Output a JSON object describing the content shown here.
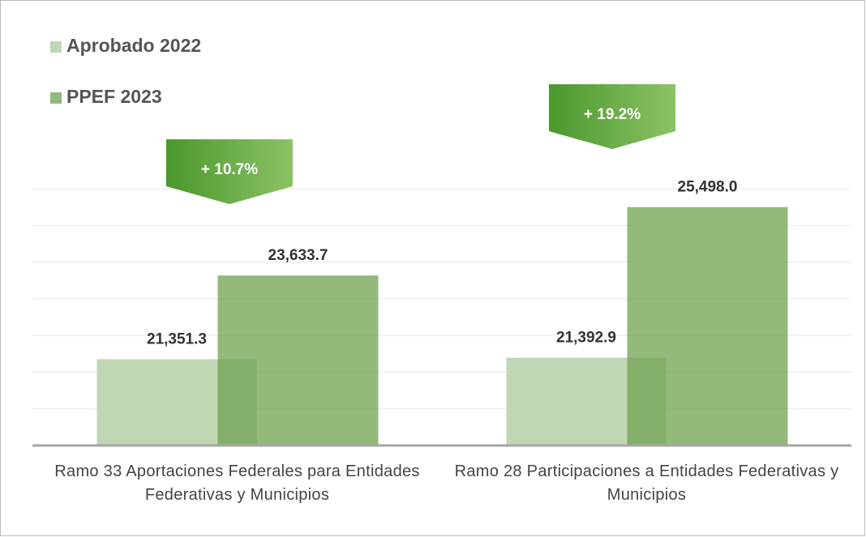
{
  "chart_data": {
    "type": "bar",
    "categories": [
      "Ramo 33 Aportaciones  Federales para Entidades  Federativas  y Municipios",
      "Ramo 28 Participaciones  a Entidades Federativas  y Municipios"
    ],
    "series": [
      {
        "name": "Aprobado 2022",
        "color": "#bfd7b2",
        "values": [
          21351.3,
          21392.9
        ],
        "value_labels": [
          "21,351.3",
          "21,392.9"
        ]
      },
      {
        "name": "PPEF 2023",
        "color": "#6fa24f",
        "values": [
          23633.7,
          25498.0
        ],
        "value_labels": [
          "23,633.7",
          "25,498.0"
        ]
      }
    ],
    "annotations": [
      "+ 10.7%",
      "+ 19.2%"
    ],
    "ylim": [
      19000,
      26000
    ],
    "yticks": [
      19000,
      20000,
      21000,
      22000,
      23000,
      24000,
      25000,
      26000
    ],
    "grid": true,
    "legend": "top-left"
  }
}
